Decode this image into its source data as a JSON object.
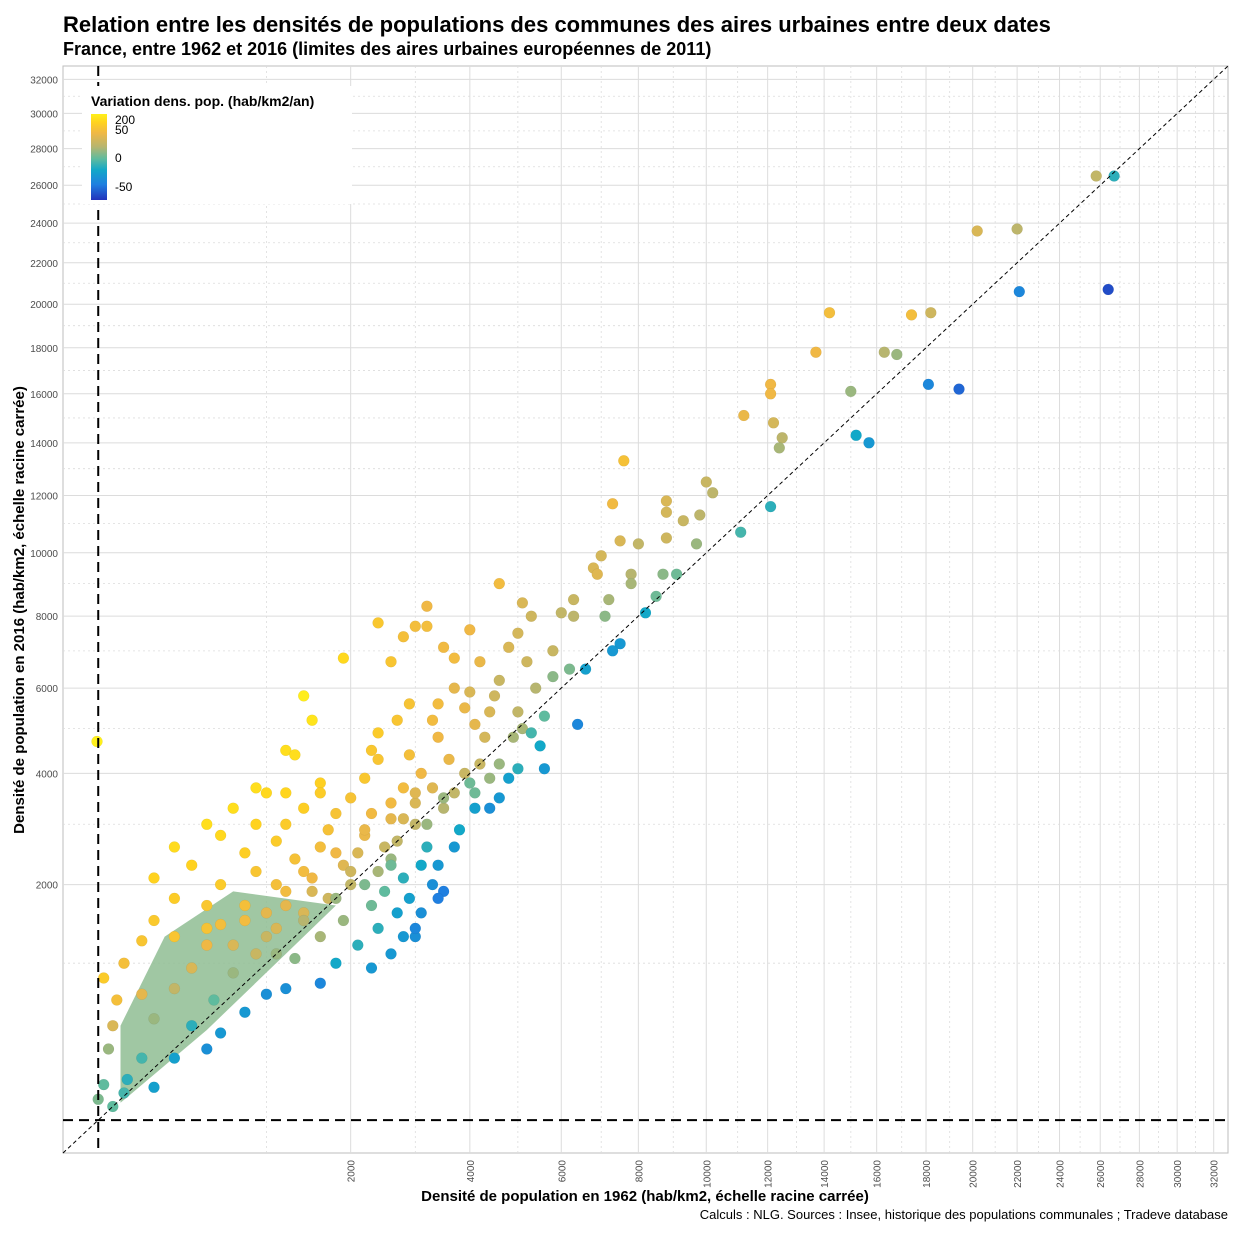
{
  "header": {
    "title": "Relation entre les densités de populations des communes des aires urbaines entre deux dates",
    "subtitle": "France, entre 1962 et 2016 (limites des aires urbaines européennes de 2011)"
  },
  "caption": "Calculs : NLG. Sources : Insee, historique des populations communales ; Tradeve database",
  "colors": {
    "scale": [
      "#2233bb",
      "#1f7fe0",
      "#12a8c8",
      "#5fbb9e",
      "#b7b56f",
      "#f0b845",
      "#ffd21f",
      "#fff01a"
    ],
    "reference_line": "#000000",
    "threshold_line": "#000000",
    "grid": "#dcdcdc"
  },
  "chart_data": {
    "type": "scatter",
    "title": "",
    "xlabel": "Densité de population en 1962 (hab/km2, échelle racine carrée)",
    "ylabel": "Densité de population en 2016 (hab/km2, échelle racine carrée)",
    "scale": "sqrt",
    "xlim": [
      0,
      32800
    ],
    "ylim": [
      0,
      32800
    ],
    "x_ticks": [
      "2000",
      "4000",
      "6000",
      "8000",
      "10000",
      "12000",
      "14000",
      "16000",
      "18000",
      "20000",
      "22000",
      "24000",
      "26000",
      "28000",
      "30000",
      "32000"
    ],
    "y_ticks": [
      "2000",
      "4000",
      "6000",
      "8000",
      "10000",
      "12000",
      "14000",
      "16000",
      "18000",
      "20000",
      "22000",
      "24000",
      "26000",
      "28000",
      "30000",
      "32000"
    ],
    "legend": {
      "title": "Variation dens. pop. (hab/km2/an)",
      "labels": [
        "200",
        "50",
        "0",
        "-50"
      ],
      "placement": "top-left"
    },
    "reference_line": "y = x",
    "threshold_x": 30,
    "threshold_y": 30,
    "grid": true,
    "cloud_outline": [
      [
        80,
        70
      ],
      [
        500,
        420
      ],
      [
        1200,
        1100
      ],
      [
        1800,
        1700
      ],
      [
        700,
        1900
      ],
      [
        250,
        1300
      ],
      [
        80,
        450
      ]
    ],
    "points": [
      [
        26700,
        26500,
        -10
      ],
      [
        25800,
        26500,
        40
      ],
      [
        20200,
        23600,
        60
      ],
      [
        22000,
        23700,
        35
      ],
      [
        26400,
        20700,
        -60
      ],
      [
        22100,
        20600,
        -35
      ],
      [
        14200,
        19600,
        95
      ],
      [
        17400,
        19500,
        95
      ],
      [
        18200,
        19600,
        50
      ],
      [
        13700,
        17800,
        80
      ],
      [
        16300,
        17800,
        30
      ],
      [
        16800,
        17700,
        20
      ],
      [
        12100,
        16400,
        80
      ],
      [
        12100,
        16000,
        80
      ],
      [
        15000,
        16100,
        20
      ],
      [
        18100,
        16400,
        -35
      ],
      [
        19400,
        16200,
        -50
      ],
      [
        11200,
        15100,
        75
      ],
      [
        12200,
        14800,
        55
      ],
      [
        12500,
        14200,
        35
      ],
      [
        12400,
        13800,
        25
      ],
      [
        15200,
        14300,
        -15
      ],
      [
        15700,
        14000,
        -25
      ],
      [
        7600,
        13300,
        105
      ],
      [
        10000,
        12500,
        45
      ],
      [
        10200,
        12100,
        35
      ],
      [
        7300,
        11700,
        85
      ],
      [
        8800,
        11800,
        60
      ],
      [
        8800,
        11400,
        55
      ],
      [
        9300,
        11100,
        45
      ],
      [
        9800,
        11300,
        35
      ],
      [
        12100,
        11600,
        -10
      ],
      [
        11100,
        10700,
        -5
      ],
      [
        7500,
        10400,
        60
      ],
      [
        8800,
        10500,
        50
      ],
      [
        8000,
        10300,
        40
      ],
      [
        9700,
        10300,
        20
      ],
      [
        7000,
        9900,
        55
      ],
      [
        6800,
        9500,
        60
      ],
      [
        6900,
        9300,
        65
      ],
      [
        7800,
        9300,
        30
      ],
      [
        8700,
        9300,
        15
      ],
      [
        9100,
        9300,
        5
      ],
      [
        4600,
        9000,
        90
      ],
      [
        7800,
        9000,
        25
      ],
      [
        8500,
        8600,
        5
      ],
      [
        6300,
        8500,
        45
      ],
      [
        7200,
        8500,
        25
      ],
      [
        5100,
        8400,
        60
      ],
      [
        6000,
        8100,
        40
      ],
      [
        3200,
        8300,
        80
      ],
      [
        5300,
        8000,
        50
      ],
      [
        6300,
        8000,
        35
      ],
      [
        7100,
        8000,
        15
      ],
      [
        8200,
        8100,
        -15
      ],
      [
        2400,
        7800,
        120
      ],
      [
        3000,
        7700,
        95
      ],
      [
        3200,
        7700,
        95
      ],
      [
        4000,
        7600,
        80
      ],
      [
        2800,
        7400,
        100
      ],
      [
        5000,
        7500,
        55
      ],
      [
        7500,
        7200,
        -25
      ],
      [
        3500,
        7100,
        85
      ],
      [
        4800,
        7100,
        60
      ],
      [
        5800,
        7000,
        45
      ],
      [
        7300,
        7000,
        -25
      ],
      [
        1900,
        6800,
        160
      ],
      [
        2600,
        6700,
        115
      ],
      [
        3700,
        6800,
        90
      ],
      [
        4200,
        6700,
        75
      ],
      [
        5200,
        6700,
        50
      ],
      [
        6200,
        6500,
        10
      ],
      [
        6600,
        6500,
        -20
      ],
      [
        5800,
        6300,
        15
      ],
      [
        4600,
        6200,
        45
      ],
      [
        3700,
        6000,
        70
      ],
      [
        5400,
        6000,
        30
      ],
      [
        4000,
        5900,
        60
      ],
      [
        4500,
        5800,
        50
      ],
      [
        1400,
        5800,
        195
      ],
      [
        2900,
        5600,
        110
      ],
      [
        3400,
        5600,
        90
      ],
      [
        3900,
        5500,
        75
      ],
      [
        4400,
        5400,
        60
      ],
      [
        5000,
        5400,
        40
      ],
      [
        5600,
        5300,
        0
      ],
      [
        6400,
        5100,
        -35
      ],
      [
        1500,
        5200,
        180
      ],
      [
        2700,
        5200,
        115
      ],
      [
        3300,
        5200,
        90
      ],
      [
        4100,
        5100,
        70
      ],
      [
        5100,
        5000,
        25
      ],
      [
        5300,
        4900,
        -5
      ],
      [
        2400,
        4900,
        130
      ],
      [
        3400,
        4800,
        80
      ],
      [
        4300,
        4800,
        55
      ],
      [
        4900,
        4800,
        25
      ],
      [
        5500,
        4600,
        -15
      ],
      [
        28,
        4700,
        200
      ],
      [
        1200,
        4500,
        170
      ],
      [
        1300,
        4400,
        170
      ],
      [
        2300,
        4500,
        120
      ],
      [
        2900,
        4400,
        100
      ],
      [
        3600,
        4300,
        75
      ],
      [
        4200,
        4200,
        45
      ],
      [
        4600,
        4200,
        20
      ],
      [
        5000,
        4100,
        -10
      ],
      [
        5600,
        4100,
        -25
      ],
      [
        2400,
        4300,
        115
      ],
      [
        3100,
        4000,
        80
      ],
      [
        3900,
        4000,
        45
      ],
      [
        4400,
        3900,
        20
      ],
      [
        4800,
        3900,
        -20
      ],
      [
        1600,
        3800,
        145
      ],
      [
        2200,
        3900,
        120
      ],
      [
        2800,
        3700,
        90
      ],
      [
        3300,
        3700,
        65
      ],
      [
        3700,
        3600,
        40
      ],
      [
        4100,
        3600,
        5
      ],
      [
        4600,
        3500,
        -25
      ],
      [
        900,
        3700,
        170
      ],
      [
        1000,
        3600,
        160
      ],
      [
        1200,
        3600,
        155
      ],
      [
        1600,
        3600,
        135
      ],
      [
        2000,
        3500,
        110
      ],
      [
        2600,
        3400,
        85
      ],
      [
        3000,
        3400,
        60
      ],
      [
        3500,
        3300,
        30
      ],
      [
        4100,
        3300,
        -20
      ],
      [
        4400,
        3300,
        -30
      ],
      [
        700,
        3300,
        170
      ],
      [
        1400,
        3300,
        140
      ],
      [
        1800,
        3200,
        110
      ],
      [
        2300,
        3200,
        85
      ],
      [
        2800,
        3100,
        60
      ],
      [
        3200,
        3000,
        20
      ],
      [
        3800,
        2900,
        -15
      ],
      [
        500,
        3000,
        170
      ],
      [
        900,
        3000,
        150
      ],
      [
        1200,
        3000,
        130
      ],
      [
        1700,
        2900,
        105
      ],
      [
        2200,
        2800,
        75
      ],
      [
        2700,
        2700,
        40
      ],
      [
        3200,
        2600,
        -10
      ],
      [
        3700,
        2600,
        -25
      ],
      [
        600,
        2800,
        160
      ],
      [
        1100,
        2700,
        130
      ],
      [
        1600,
        2600,
        95
      ],
      [
        2100,
        2500,
        60
      ],
      [
        2600,
        2400,
        20
      ],
      [
        3100,
        2300,
        -15
      ],
      [
        3400,
        2300,
        -25
      ],
      [
        300,
        2600,
        165
      ],
      [
        800,
        2500,
        140
      ],
      [
        1300,
        2400,
        105
      ],
      [
        1900,
        2300,
        65
      ],
      [
        2400,
        2200,
        25
      ],
      [
        2800,
        2100,
        -10
      ],
      [
        3300,
        2000,
        -30
      ],
      [
        400,
        2300,
        150
      ],
      [
        900,
        2200,
        115
      ],
      [
        1500,
        2100,
        80
      ],
      [
        2000,
        2000,
        40
      ],
      [
        2500,
        1900,
        0
      ],
      [
        2900,
        1800,
        -20
      ],
      [
        3500,
        1900,
        -40
      ],
      [
        200,
        2100,
        150
      ],
      [
        600,
        2000,
        130
      ],
      [
        1200,
        1900,
        90
      ],
      [
        1700,
        1800,
        50
      ],
      [
        2300,
        1700,
        5
      ],
      [
        2700,
        1600,
        -20
      ],
      [
        3100,
        1600,
        -30
      ],
      [
        3400,
        1800,
        -40
      ],
      [
        300,
        1800,
        135
      ],
      [
        800,
        1700,
        100
      ],
      [
        1400,
        1600,
        60
      ],
      [
        1900,
        1500,
        20
      ],
      [
        2400,
        1400,
        -10
      ],
      [
        2800,
        1300,
        -25
      ],
      [
        3000,
        1300,
        -30
      ],
      [
        200,
        1500,
        125
      ],
      [
        600,
        1450,
        95
      ],
      [
        1100,
        1400,
        60
      ],
      [
        1600,
        1300,
        25
      ],
      [
        2100,
        1200,
        -10
      ],
      [
        2600,
        1100,
        -25
      ],
      [
        3000,
        1400,
        -35
      ],
      [
        150,
        1250,
        115
      ],
      [
        500,
        1200,
        80
      ],
      [
        900,
        1100,
        45
      ],
      [
        1300,
        1050,
        15
      ],
      [
        1800,
        1000,
        -15
      ],
      [
        2300,
        950,
        -25
      ],
      [
        1200,
        750,
        -30
      ],
      [
        1600,
        800,
        -35
      ],
      [
        1000,
        700,
        -30
      ],
      [
        700,
        900,
        20
      ],
      [
        400,
        950,
        60
      ],
      [
        90,
        1000,
        100
      ],
      [
        40,
        850,
        130
      ],
      [
        70,
        650,
        100
      ],
      [
        150,
        700,
        70
      ],
      [
        300,
        750,
        40
      ],
      [
        550,
        650,
        0
      ],
      [
        800,
        550,
        -25
      ],
      [
        60,
        450,
        60
      ],
      [
        200,
        500,
        20
      ],
      [
        400,
        450,
        -10
      ],
      [
        600,
        400,
        -25
      ],
      [
        50,
        300,
        20
      ],
      [
        150,
        250,
        -5
      ],
      [
        300,
        250,
        -20
      ],
      [
        500,
        300,
        -30
      ],
      [
        40,
        130,
        0
      ],
      [
        100,
        150,
        -10
      ],
      [
        200,
        120,
        -20
      ],
      [
        30,
        80,
        10
      ],
      [
        60,
        60,
        0
      ],
      [
        90,
        100,
        -5
      ],
      [
        1000,
        1600,
        70
      ],
      [
        1500,
        1900,
        60
      ],
      [
        2000,
        2200,
        50
      ],
      [
        2500,
        2600,
        45
      ],
      [
        3000,
        3000,
        40
      ],
      [
        3500,
        3500,
        20
      ],
      [
        4000,
        3800,
        5
      ],
      [
        1000,
        1300,
        45
      ],
      [
        1400,
        1500,
        30
      ],
      [
        1800,
        1800,
        20
      ],
      [
        2200,
        2000,
        10
      ],
      [
        2600,
        2300,
        5
      ],
      [
        1100,
        2000,
        100
      ],
      [
        1400,
        2200,
        90
      ],
      [
        1800,
        2500,
        80
      ],
      [
        2200,
        2900,
        75
      ],
      [
        2600,
        3100,
        70
      ],
      [
        3000,
        3600,
        65
      ],
      [
        800,
        1500,
        90
      ],
      [
        1200,
        1700,
        70
      ],
      [
        500,
        1400,
        110
      ],
      [
        500,
        1700,
        120
      ],
      [
        300,
        1300,
        115
      ],
      [
        700,
        1200,
        60
      ],
      [
        1100,
        1100,
        20
      ]
    ]
  }
}
